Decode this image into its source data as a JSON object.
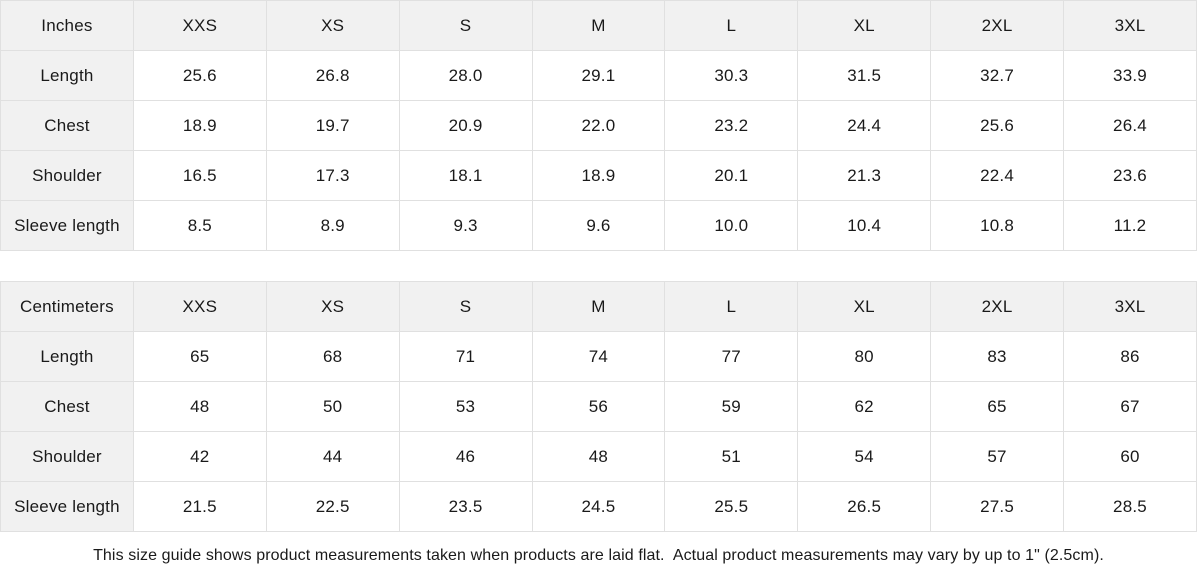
{
  "tables": [
    {
      "id": "inches",
      "unit_label": "Inches",
      "sizes": [
        "XXS",
        "XS",
        "S",
        "M",
        "L",
        "XL",
        "2XL",
        "3XL"
      ],
      "rows": [
        {
          "label": "Length",
          "values": [
            "25.6",
            "26.8",
            "28.0",
            "29.1",
            "30.3",
            "31.5",
            "32.7",
            "33.9"
          ]
        },
        {
          "label": "Chest",
          "values": [
            "18.9",
            "19.7",
            "20.9",
            "22.0",
            "23.2",
            "24.4",
            "25.6",
            "26.4"
          ]
        },
        {
          "label": "Shoulder",
          "values": [
            "16.5",
            "17.3",
            "18.1",
            "18.9",
            "20.1",
            "21.3",
            "22.4",
            "23.6"
          ]
        },
        {
          "label": "Sleeve length",
          "values": [
            "8.5",
            "8.9",
            "9.3",
            "9.6",
            "10.0",
            "10.4",
            "10.8",
            "11.2"
          ]
        }
      ]
    },
    {
      "id": "centimeters",
      "unit_label": "Centimeters",
      "sizes": [
        "XXS",
        "XS",
        "S",
        "M",
        "L",
        "XL",
        "2XL",
        "3XL"
      ],
      "rows": [
        {
          "label": "Length",
          "values": [
            "65",
            "68",
            "71",
            "74",
            "77",
            "80",
            "83",
            "86"
          ]
        },
        {
          "label": "Chest",
          "values": [
            "48",
            "50",
            "53",
            "56",
            "59",
            "62",
            "65",
            "67"
          ]
        },
        {
          "label": "Shoulder",
          "values": [
            "42",
            "44",
            "46",
            "48",
            "51",
            "54",
            "57",
            "60"
          ]
        },
        {
          "label": "Sleeve length",
          "values": [
            "21.5",
            "22.5",
            "23.5",
            "24.5",
            "25.5",
            "26.5",
            "27.5",
            "28.5"
          ]
        }
      ]
    }
  ],
  "footnote": "This size guide shows product measurements taken when products are laid flat.  Actual product measurements may vary by up to 1\" (2.5cm).",
  "colors": {
    "header_bg": "#f1f1f1",
    "border": "#e0e0e0",
    "text": "#1a1a1a",
    "background": "#ffffff"
  }
}
